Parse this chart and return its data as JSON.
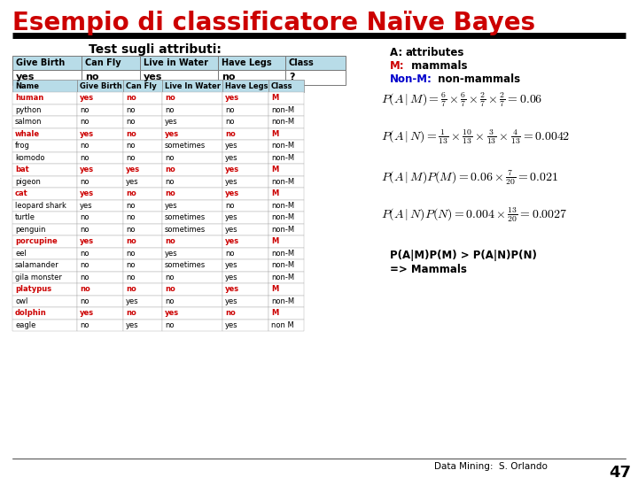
{
  "title": "Esempio di classificatore Naïve Bayes",
  "title_color": "#cc0000",
  "subtitle": "Test sugli attributi:",
  "bg_color": "#ffffff",
  "test_headers": [
    "Give Birth",
    "Can Fly",
    "Live in Water",
    "Have Legs",
    "Class"
  ],
  "test_values": [
    "yes",
    "no",
    "yes",
    "no",
    "?"
  ],
  "table_headers": [
    "Name",
    "Give Birth",
    "Can Fly",
    "Live In Water",
    "Have Legs",
    "Class"
  ],
  "table_data": [
    [
      "human",
      "yes",
      "no",
      "no",
      "yes",
      "M"
    ],
    [
      "python",
      "no",
      "no",
      "no",
      "no",
      "non-M"
    ],
    [
      "salmon",
      "no",
      "no",
      "yes",
      "no",
      "non-M"
    ],
    [
      "whale",
      "yes",
      "no",
      "yes",
      "no",
      "M"
    ],
    [
      "frog",
      "no",
      "no",
      "sometimes",
      "yes",
      "non-M"
    ],
    [
      "komodo",
      "no",
      "no",
      "no",
      "yes",
      "non-M"
    ],
    [
      "bat",
      "yes",
      "yes",
      "no",
      "yes",
      "M"
    ],
    [
      "pigeon",
      "no",
      "yes",
      "no",
      "yes",
      "non-M"
    ],
    [
      "cat",
      "yes",
      "no",
      "no",
      "yes",
      "M"
    ],
    [
      "leopard shark",
      "yes",
      "no",
      "yes",
      "no",
      "non-M"
    ],
    [
      "turtle",
      "no",
      "no",
      "sometimes",
      "yes",
      "non-M"
    ],
    [
      "penguin",
      "no",
      "no",
      "sometimes",
      "yes",
      "non-M"
    ],
    [
      "porcupine",
      "yes",
      "no",
      "no",
      "yes",
      "M"
    ],
    [
      "eel",
      "no",
      "no",
      "yes",
      "no",
      "non-M"
    ],
    [
      "salamander",
      "no",
      "no",
      "sometimes",
      "yes",
      "non-M"
    ],
    [
      "gila monster",
      "no",
      "no",
      "no",
      "yes",
      "non-M"
    ],
    [
      "platypus",
      "no",
      "no",
      "no",
      "yes",
      "M"
    ],
    [
      "owl",
      "no",
      "yes",
      "no",
      "yes",
      "non-M"
    ],
    [
      "dolphin",
      "yes",
      "no",
      "yes",
      "no",
      "M"
    ],
    [
      "eagle",
      "no",
      "yes",
      "no",
      "yes",
      "non M"
    ]
  ],
  "mammal_rows": [
    "human",
    "whale",
    "bat",
    "cat",
    "porcupine",
    "platypus",
    "dolphin"
  ],
  "legend_M_color": "#cc0000",
  "legend_N_color": "#0000cc",
  "footer": "Data Mining:  S. Orlando",
  "footer_page": "47",
  "header_bg": "#b8dce8",
  "mammal_color": "#cc0000",
  "nonmammal_color": "#000000"
}
